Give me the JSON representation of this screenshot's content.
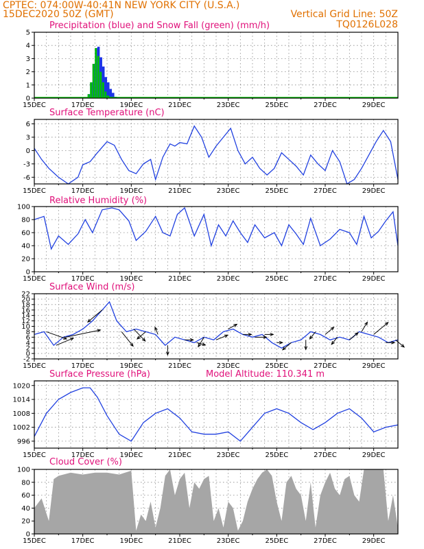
{
  "header": {
    "line1": "CPTEC:   074:00W-40:41N  NEW YORK CITY (U.S.A.)",
    "line2_left": "15DEC2020 50Z (GMT)",
    "line2_right": "Vertical Grid Line: 50Z",
    "code": "TQ0126L028"
  },
  "colors": {
    "header": "#e07000",
    "title": "#e0107a",
    "line": "#2040e0",
    "rain": "#1a33e6",
    "snow": "#00c000",
    "cloud": "#a6a6a6"
  },
  "x_axis": {
    "labels": [
      "15DEC",
      "17DEC",
      "19DEC",
      "21DEC",
      "23DEC",
      "25DEC",
      "27DEC",
      "29DEC"
    ],
    "range_days": [
      0,
      15
    ]
  },
  "chart_data": [
    {
      "id": "precip",
      "type": "bar",
      "title": "Precipitation (blue) and Snow Fall (green) (mm/h)",
      "ylim": [
        0,
        5
      ],
      "yticks": [
        0,
        1,
        2,
        3,
        4,
        5
      ],
      "series": [
        {
          "name": "precipitation",
          "x": [
            2.25,
            2.35,
            2.45,
            2.55,
            2.65,
            2.75,
            2.85,
            2.95,
            3.05,
            3.15,
            3.25,
            3.35
          ],
          "values": [
            0.3,
            1.2,
            2.6,
            3.8,
            3.9,
            3.1,
            2.4,
            1.6,
            1.2,
            0.7,
            0.4,
            0.1
          ]
        },
        {
          "name": "snowfall",
          "x": [
            2.25,
            2.35,
            2.45,
            2.55,
            2.65,
            2.75,
            2.85,
            2.95,
            3.05,
            3.15
          ],
          "values": [
            0.3,
            1.2,
            2.6,
            3.8,
            3.2,
            2.0,
            1.2,
            0.5,
            0.2,
            0.1
          ]
        }
      ]
    },
    {
      "id": "temp",
      "type": "line",
      "title": "Surface Temperature (nC)",
      "ylim": [
        -7.5,
        7
      ],
      "yticks": [
        -6,
        -3,
        0,
        3,
        6
      ],
      "x": [
        0,
        0.3,
        0.6,
        1,
        1.4,
        1.8,
        2,
        2.3,
        2.6,
        3,
        3.3,
        3.6,
        3.9,
        4.2,
        4.5,
        4.8,
        5.0,
        5.3,
        5.6,
        5.8,
        6.0,
        6.3,
        6.6,
        6.9,
        7.2,
        7.5,
        7.8,
        8.1,
        8.4,
        8.7,
        9.0,
        9.3,
        9.6,
        9.9,
        10.2,
        10.5,
        10.8,
        11.1,
        11.4,
        11.7,
        12.0,
        12.3,
        12.6,
        12.9,
        13.2,
        13.5,
        13.8,
        14.1,
        14.4,
        14.7,
        15
      ],
      "values": [
        0.5,
        -2,
        -4,
        -6,
        -8,
        -6,
        -3.2,
        -2.5,
        -0.5,
        2.0,
        1.2,
        -2.0,
        -4.5,
        -5.2,
        -3.0,
        -2.0,
        -6.5,
        -1.5,
        1.5,
        1.0,
        1.8,
        1.5,
        5.5,
        3.0,
        -1.5,
        1.0,
        3.0,
        5.0,
        0.0,
        -3.0,
        -1.5,
        -4.0,
        -5.5,
        -4.0,
        -0.5,
        -2.0,
        -3.5,
        -5.5,
        -1.0,
        -3.0,
        -4.5,
        0.0,
        -2.5,
        -8.0,
        -6.5,
        -4.0,
        -1.0,
        2.0,
        4.5,
        2.0,
        -6.5
      ]
    },
    {
      "id": "rh",
      "type": "line",
      "title": "Relative Humidity (%)",
      "ylim": [
        0,
        100
      ],
      "yticks": [
        0,
        20,
        40,
        60,
        80,
        100
      ],
      "x": [
        0,
        0.4,
        0.7,
        1.0,
        1.4,
        1.8,
        2.1,
        2.4,
        2.8,
        3.2,
        3.5,
        3.9,
        4.2,
        4.6,
        5.0,
        5.3,
        5.6,
        5.9,
        6.2,
        6.6,
        7.0,
        7.3,
        7.6,
        7.9,
        8.2,
        8.5,
        8.8,
        9.1,
        9.5,
        9.9,
        10.2,
        10.5,
        10.8,
        11.1,
        11.4,
        11.8,
        12.2,
        12.6,
        13.0,
        13.3,
        13.6,
        13.9,
        14.2,
        14.5,
        14.8,
        15
      ],
      "values": [
        80,
        85,
        35,
        55,
        42,
        58,
        80,
        60,
        95,
        98,
        95,
        78,
        48,
        62,
        85,
        60,
        55,
        88,
        98,
        55,
        88,
        40,
        72,
        55,
        78,
        60,
        45,
        72,
        52,
        60,
        40,
        72,
        58,
        42,
        82,
        40,
        50,
        65,
        60,
        42,
        85,
        52,
        62,
        78,
        92,
        40
      ]
    },
    {
      "id": "wind",
      "type": "line",
      "title": "Surface Wind (m/s)",
      "ylim": [
        -2,
        22
      ],
      "yticks": [
        -2,
        0,
        2,
        4,
        6,
        8,
        10,
        12,
        14,
        16,
        18,
        20,
        22
      ],
      "x": [
        0,
        0.4,
        0.8,
        1.2,
        1.6,
        2.0,
        2.4,
        2.8,
        3.1,
        3.4,
        3.8,
        4.2,
        4.6,
        5.0,
        5.4,
        5.8,
        6.2,
        6.6,
        7.0,
        7.4,
        7.8,
        8.2,
        8.6,
        9.0,
        9.4,
        9.8,
        10.2,
        10.6,
        11.0,
        11.4,
        11.8,
        12.2,
        12.6,
        13.0,
        13.4,
        13.8,
        14.2,
        14.6,
        15
      ],
      "values": [
        7,
        8,
        3,
        6,
        7,
        9,
        12,
        16,
        19,
        12,
        8,
        9,
        8,
        7,
        3,
        6,
        5,
        4,
        6,
        5,
        8,
        9,
        7,
        6,
        7,
        4,
        2,
        4,
        5,
        8,
        7,
        5,
        6,
        5,
        8,
        7,
        6,
        4,
        5
      ],
      "arrows": [
        {
          "x": 0.5,
          "u": 7,
          "v": -3
        },
        {
          "x": 0.9,
          "u": 6,
          "v": 3
        },
        {
          "x": 1.3,
          "u": 12,
          "v": 3
        },
        {
          "x": 2.8,
          "u": -5,
          "v": -5
        },
        {
          "x": 3.6,
          "u": 4,
          "v": -6
        },
        {
          "x": 4.1,
          "u": 4,
          "v": -5
        },
        {
          "x": 4.6,
          "u": -3,
          "v": -3
        },
        {
          "x": 5.1,
          "u": -1,
          "v": 3
        },
        {
          "x": 5.5,
          "u": 0,
          "v": -4
        },
        {
          "x": 6.2,
          "u": 3,
          "v": 0
        },
        {
          "x": 6.7,
          "u": 3,
          "v": -1
        },
        {
          "x": 7.0,
          "u": -2,
          "v": -4
        },
        {
          "x": 7.5,
          "u": 4,
          "v": 2
        },
        {
          "x": 8.0,
          "u": 3,
          "v": 2
        },
        {
          "x": 8.6,
          "u": 3,
          "v": 0
        },
        {
          "x": 9.1,
          "u": 4,
          "v": 0
        },
        {
          "x": 9.5,
          "u": 3,
          "v": 0
        },
        {
          "x": 10.0,
          "u": 2,
          "v": 0
        },
        {
          "x": 10.6,
          "u": -3,
          "v": -3
        },
        {
          "x": 11.2,
          "u": 0,
          "v": -4
        },
        {
          "x": 11.6,
          "u": -2,
          "v": -3
        },
        {
          "x": 12.0,
          "u": 3,
          "v": 3
        },
        {
          "x": 12.5,
          "u": -2,
          "v": -3
        },
        {
          "x": 13.0,
          "u": 3,
          "v": 3
        },
        {
          "x": 13.5,
          "u": 2,
          "v": 4
        },
        {
          "x": 14.0,
          "u": 5,
          "v": 5
        },
        {
          "x": 14.5,
          "u": 3,
          "v": 0
        },
        {
          "x": 14.9,
          "u": 3,
          "v": -3
        }
      ]
    },
    {
      "id": "pres",
      "type": "line",
      "title": "Surface Pressure (hPa)",
      "subtitle": "Model Altitude: 110.341  m",
      "ylim": [
        993,
        1022
      ],
      "yticks": [
        996,
        1002,
        1008,
        1014,
        1020
      ],
      "x": [
        0,
        0.5,
        1.0,
        1.5,
        2.0,
        2.3,
        2.6,
        3.0,
        3.5,
        4.0,
        4.5,
        5.0,
        5.5,
        6.0,
        6.5,
        7.0,
        7.5,
        8.0,
        8.5,
        9.0,
        9.5,
        10.0,
        10.5,
        11.0,
        11.5,
        12.0,
        12.5,
        13.0,
        13.5,
        14.0,
        14.5,
        15
      ],
      "values": [
        998,
        1008,
        1014,
        1017,
        1019,
        1019,
        1015,
        1007,
        999,
        996,
        1004,
        1008,
        1010,
        1006,
        1000,
        999,
        999,
        1000,
        996,
        1002,
        1008,
        1010,
        1008,
        1004,
        1001,
        1004,
        1008,
        1010,
        1006,
        1000,
        1002,
        1003
      ]
    },
    {
      "id": "cloud",
      "type": "area",
      "title": "Cloud Cover (%)",
      "ylim": [
        0,
        100
      ],
      "yticks": [
        0,
        20,
        40,
        60,
        80,
        100
      ],
      "x": [
        0,
        0.3,
        0.6,
        0.8,
        1.0,
        1.5,
        2.0,
        2.5,
        3.0,
        3.5,
        4.0,
        4.2,
        4.4,
        4.6,
        4.8,
        5.0,
        5.2,
        5.4,
        5.6,
        5.8,
        6.0,
        6.2,
        6.4,
        6.6,
        6.8,
        7.0,
        7.2,
        7.4,
        7.6,
        7.8,
        8.0,
        8.2,
        8.4,
        8.6,
        8.8,
        9.0,
        9.2,
        9.4,
        9.6,
        9.8,
        10.0,
        10.2,
        10.4,
        10.6,
        10.8,
        11.0,
        11.2,
        11.4,
        11.6,
        11.8,
        12.0,
        12.2,
        12.4,
        12.6,
        12.8,
        13.0,
        13.2,
        13.4,
        13.6,
        13.8,
        14.0,
        14.2,
        14.4,
        14.6,
        14.8,
        15
      ],
      "values": [
        40,
        55,
        20,
        85,
        90,
        95,
        92,
        95,
        95,
        92,
        98,
        5,
        30,
        20,
        50,
        10,
        40,
        90,
        100,
        60,
        85,
        95,
        40,
        80,
        70,
        85,
        90,
        20,
        40,
        10,
        50,
        40,
        5,
        20,
        50,
        70,
        85,
        95,
        100,
        90,
        50,
        20,
        80,
        90,
        70,
        60,
        20,
        80,
        10,
        60,
        80,
        95,
        70,
        60,
        85,
        90,
        60,
        50,
        100,
        100,
        100,
        100,
        100,
        20,
        60,
        10
      ]
    }
  ]
}
